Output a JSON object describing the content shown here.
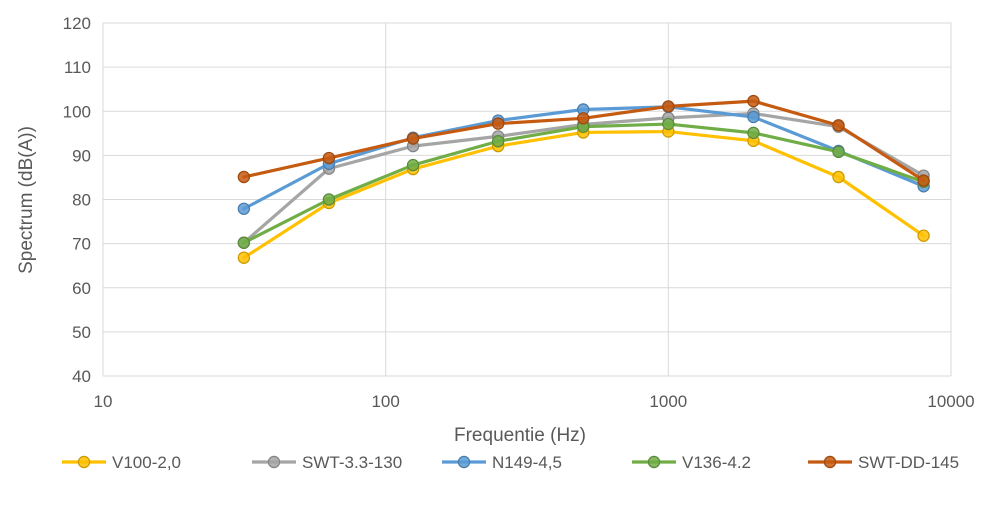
{
  "chart_data": {
    "type": "line",
    "xscale": "log",
    "xlim": [
      10,
      10000
    ],
    "ylim": [
      40,
      120
    ],
    "xlabel": "Frequentie (Hz)",
    "ylabel": "Spectrum (dB(A))",
    "x_ticks": [
      10,
      100,
      1000,
      10000
    ],
    "x_tick_labels": [
      "10",
      "100",
      "1000",
      "10000"
    ],
    "y_ticks": [
      40,
      50,
      60,
      70,
      80,
      90,
      100,
      110,
      120
    ],
    "grid": true,
    "legend_position": "bottom",
    "x": [
      31.5,
      63,
      125,
      250,
      500,
      1000,
      2000,
      4000,
      8000
    ],
    "series": [
      {
        "name": "V100-2,0",
        "color": "#FFC000",
        "values": [
          66.8,
          79.2,
          86.9,
          92.1,
          95.2,
          95.4,
          93.3,
          85.1,
          71.8
        ]
      },
      {
        "name": "SWT-3.3-130",
        "color": "#A5A5A5",
        "values": [
          70.2,
          87.0,
          92.1,
          94.3,
          97.0,
          98.5,
          99.5,
          96.5,
          85.4
        ]
      },
      {
        "name": "N149-4,5",
        "color": "#5B9BD5",
        "values": [
          77.9,
          88.1,
          94.0,
          97.9,
          100.4,
          101.0,
          98.7,
          91.0,
          83.0
        ]
      },
      {
        "name": "V136-4.2",
        "color": "#70AD47",
        "values": [
          70.2,
          80.0,
          87.8,
          93.2,
          96.5,
          97.1,
          95.1,
          90.8,
          84.0
        ]
      },
      {
        "name": "SWT-DD-145",
        "color": "#C55A11",
        "values": [
          85.1,
          89.4,
          93.8,
          97.2,
          98.4,
          101.1,
          102.3,
          96.8,
          84.3
        ]
      }
    ]
  }
}
